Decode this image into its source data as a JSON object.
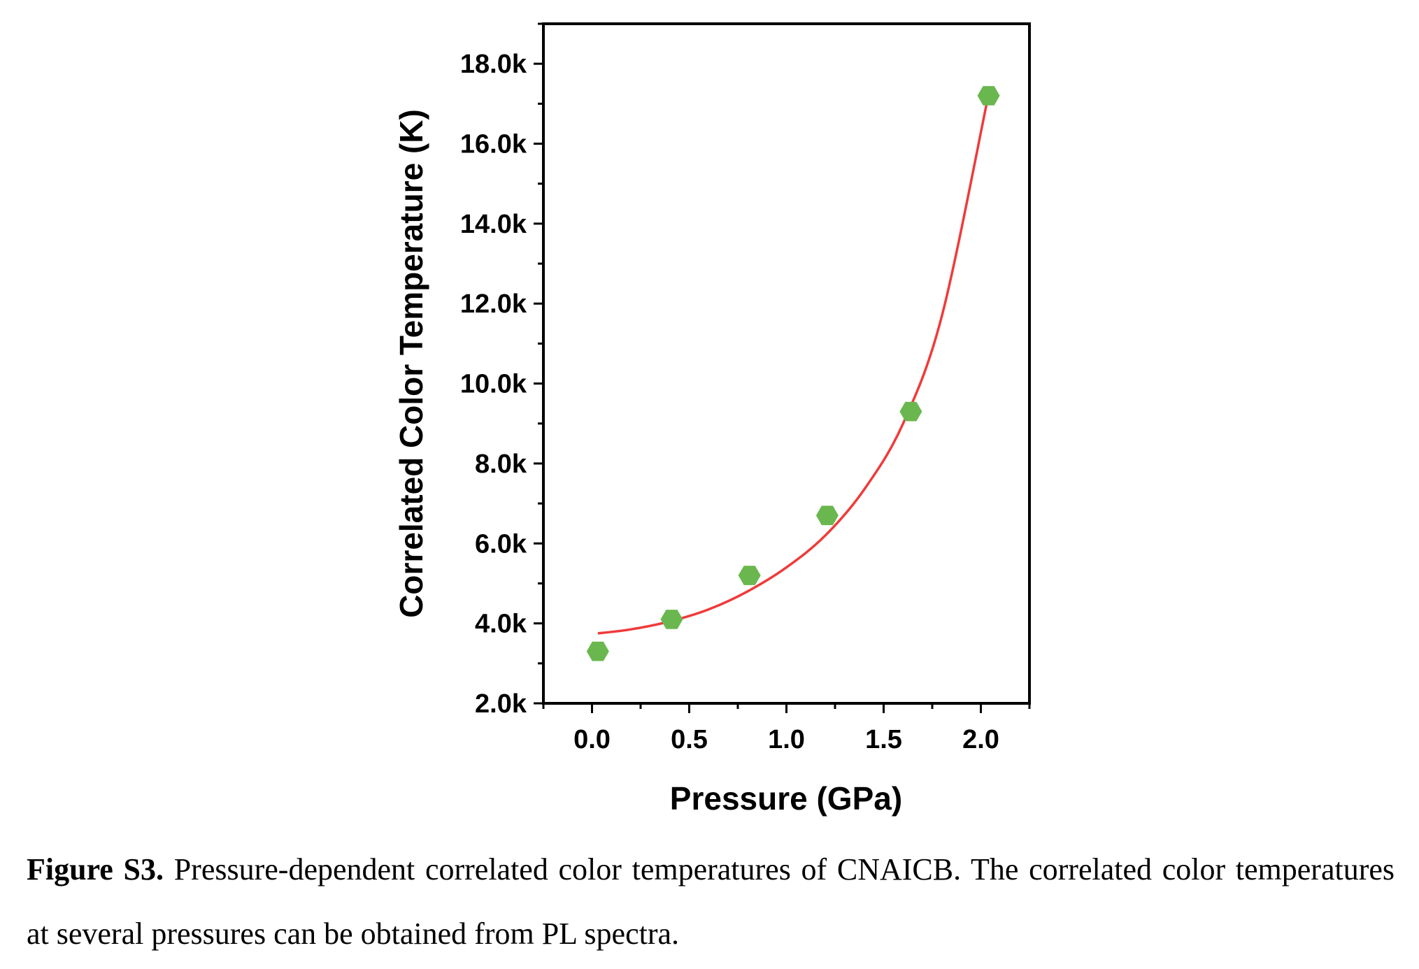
{
  "chart_data": {
    "type": "scatter",
    "xlabel": "Pressure (GPa)",
    "ylabel": "Correlated Color Temperature (K)",
    "xlim": [
      -0.25,
      2.25
    ],
    "ylim": [
      2000,
      19000
    ],
    "x_ticks": [
      0.0,
      0.5,
      1.0,
      1.5,
      2.0
    ],
    "x_tick_labels": [
      "0.0",
      "0.5",
      "1.0",
      "1.5",
      "2.0"
    ],
    "y_ticks": [
      2000,
      4000,
      6000,
      8000,
      10000,
      12000,
      14000,
      16000,
      18000
    ],
    "y_tick_labels": [
      "2.0k",
      "4.0k",
      "6.0k",
      "8.0k",
      "10.0k",
      "12.0k",
      "14.0k",
      "16.0k",
      "18.0k"
    ],
    "grid": false,
    "series": [
      {
        "marker": "hexagon",
        "color": "#6ab74f",
        "x": [
          0.03,
          0.41,
          0.81,
          1.21,
          1.64,
          2.04
        ],
        "y": [
          3300,
          4100,
          5200,
          6700,
          9300,
          17200
        ]
      }
    ],
    "fit_curve": {
      "color": "#f03a3a",
      "x": [
        0.03,
        0.2,
        0.4,
        0.6,
        0.8,
        1.0,
        1.2,
        1.4,
        1.6,
        1.8,
        2.03
      ],
      "y": [
        3750,
        3850,
        4050,
        4350,
        4800,
        5400,
        6200,
        7350,
        9000,
        11700,
        17000
      ]
    }
  },
  "caption": {
    "label": "Figure S3.",
    "text": " Pressure-dependent correlated color temperatures of CNAICB. The correlated color temperatures at several pressures can be obtained from PL spectra."
  }
}
